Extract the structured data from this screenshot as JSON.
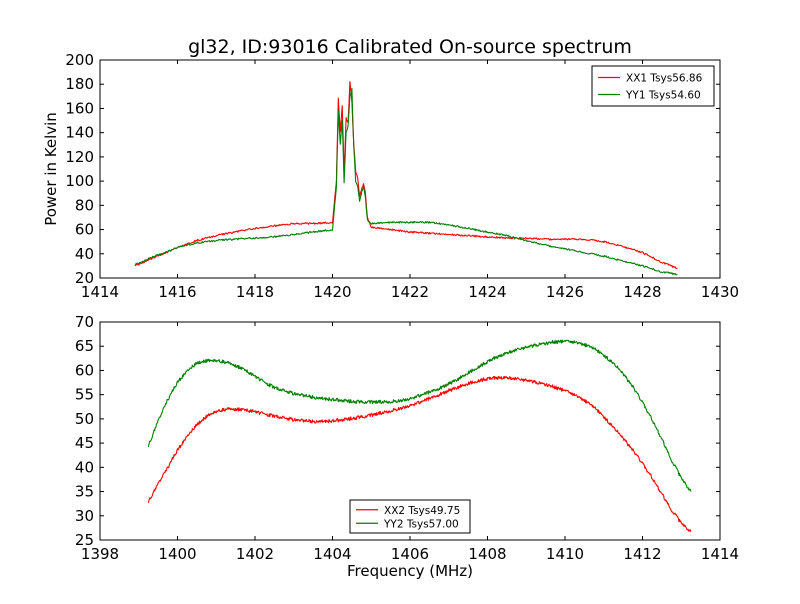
{
  "chart_data": [
    {
      "type": "line",
      "title": "gl32, ID:93016 Calibrated On-source spectrum",
      "xlabel": "",
      "ylabel": "Power in Kelvin",
      "xlim": [
        1414,
        1430
      ],
      "ylim": [
        20,
        200
      ],
      "xticks": [
        1414,
        1416,
        1418,
        1420,
        1422,
        1424,
        1426,
        1428,
        1430
      ],
      "yticks": [
        20,
        40,
        60,
        80,
        100,
        120,
        140,
        160,
        180,
        200
      ],
      "legend_position": "top-right",
      "series": [
        {
          "name": "XX1 Tsys56.86",
          "color": "#ff0000",
          "x": [
            1414.9,
            1415.4,
            1416.0,
            1416.5,
            1417.0,
            1417.5,
            1418.0,
            1418.5,
            1419.0,
            1419.5,
            1420.0,
            1420.1,
            1420.15,
            1420.2,
            1420.25,
            1420.3,
            1420.35,
            1420.4,
            1420.45,
            1420.5,
            1420.55,
            1420.6,
            1420.65,
            1420.7,
            1420.8,
            1420.85,
            1420.9,
            1421.0,
            1421.5,
            1422.0,
            1422.5,
            1423.0,
            1423.5,
            1424.0,
            1424.5,
            1425.0,
            1425.5,
            1426.0,
            1426.5,
            1427.0,
            1427.5,
            1428.0,
            1428.5,
            1428.9
          ],
          "y": [
            30,
            37,
            45,
            51,
            55,
            58,
            61,
            63,
            65,
            65,
            66,
            100,
            168,
            140,
            162,
            105,
            152,
            148,
            182,
            165,
            130,
            108,
            102,
            88,
            98,
            90,
            70,
            62,
            60,
            58,
            57,
            56,
            55,
            54,
            53,
            53,
            52,
            52,
            52,
            50,
            46,
            41,
            33,
            28
          ]
        },
        {
          "name": "YY1 Tsys54.60",
          "color": "#008000",
          "x": [
            1414.9,
            1415.4,
            1416.0,
            1416.5,
            1417.0,
            1417.5,
            1418.0,
            1418.5,
            1419.0,
            1419.5,
            1420.0,
            1420.1,
            1420.15,
            1420.2,
            1420.25,
            1420.3,
            1420.35,
            1420.4,
            1420.45,
            1420.5,
            1420.55,
            1420.6,
            1420.65,
            1420.7,
            1420.8,
            1420.85,
            1420.9,
            1421.0,
            1421.5,
            1422.0,
            1422.5,
            1423.0,
            1423.5,
            1424.0,
            1424.5,
            1425.0,
            1425.5,
            1426.0,
            1426.5,
            1427.0,
            1427.5,
            1428.0,
            1428.5,
            1428.9
          ],
          "y": [
            31,
            38,
            45,
            49,
            51,
            52,
            53,
            54,
            56,
            58,
            60,
            95,
            158,
            130,
            150,
            98,
            140,
            145,
            170,
            176,
            128,
            100,
            95,
            84,
            96,
            86,
            68,
            65,
            66,
            66,
            66,
            64,
            61,
            58,
            55,
            51,
            47,
            44,
            41,
            38,
            34,
            30,
            25,
            23
          ]
        }
      ]
    },
    {
      "type": "line",
      "title": "",
      "xlabel": "Frequency (MHz)",
      "ylabel": "",
      "xlim": [
        1398,
        1414
      ],
      "ylim": [
        25,
        70
      ],
      "xticks": [
        1398,
        1400,
        1402,
        1404,
        1406,
        1408,
        1410,
        1412,
        1414
      ],
      "yticks": [
        25,
        30,
        35,
        40,
        45,
        50,
        55,
        60,
        65,
        70
      ],
      "legend_position": "bottom-center",
      "series": [
        {
          "name": "XX2 Tsys49.75",
          "color": "#ff0000",
          "x": [
            1399.25,
            1399.5,
            1399.75,
            1400.0,
            1400.25,
            1400.5,
            1400.75,
            1401.0,
            1401.25,
            1401.5,
            1401.75,
            1402.0,
            1402.25,
            1402.5,
            1402.75,
            1403.0,
            1403.25,
            1403.5,
            1403.75,
            1404.0,
            1404.25,
            1404.5,
            1404.75,
            1405.0,
            1405.25,
            1405.5,
            1405.75,
            1406.0,
            1406.25,
            1406.5,
            1406.75,
            1407.0,
            1407.25,
            1407.5,
            1407.75,
            1408.0,
            1408.25,
            1408.5,
            1408.75,
            1409.0,
            1409.25,
            1409.5,
            1409.75,
            1410.0,
            1410.25,
            1410.5,
            1410.75,
            1411.0,
            1411.25,
            1411.5,
            1411.75,
            1412.0,
            1412.25,
            1412.5,
            1412.75,
            1413.0,
            1413.25
          ],
          "y": [
            33,
            36.5,
            40,
            43.5,
            46.5,
            48.8,
            50.5,
            51.5,
            52.0,
            52.0,
            51.8,
            51.5,
            51.0,
            50.6,
            50.2,
            49.8,
            49.6,
            49.5,
            49.5,
            49.6,
            49.8,
            50.1,
            50.4,
            50.8,
            51.2,
            51.7,
            52.2,
            52.8,
            53.4,
            54.2,
            55.0,
            55.8,
            56.6,
            57.3,
            57.9,
            58.3,
            58.5,
            58.5,
            58.3,
            58.0,
            57.6,
            57.1,
            56.5,
            55.8,
            54.9,
            53.8,
            52.4,
            50.5,
            48.3,
            46.0,
            43.5,
            40.8,
            37.8,
            34.5,
            31.2,
            28.5,
            26.7
          ]
        },
        {
          "name": "YY2 Tsys57.00",
          "color": "#008000",
          "x": [
            1399.25,
            1399.5,
            1399.75,
            1400.0,
            1400.25,
            1400.5,
            1400.75,
            1401.0,
            1401.25,
            1401.5,
            1401.75,
            1402.0,
            1402.25,
            1402.5,
            1402.75,
            1403.0,
            1403.25,
            1403.5,
            1403.75,
            1404.0,
            1404.25,
            1404.5,
            1404.75,
            1405.0,
            1405.25,
            1405.5,
            1405.75,
            1406.0,
            1406.25,
            1406.5,
            1406.75,
            1407.0,
            1407.25,
            1407.5,
            1407.75,
            1408.0,
            1408.25,
            1408.5,
            1408.75,
            1409.0,
            1409.25,
            1409.5,
            1409.75,
            1410.0,
            1410.25,
            1410.5,
            1410.75,
            1411.0,
            1411.25,
            1411.5,
            1411.75,
            1412.0,
            1412.25,
            1412.5,
            1412.75,
            1413.0,
            1413.25
          ],
          "y": [
            44.5,
            49.5,
            54,
            57.5,
            60.0,
            61.5,
            62.0,
            62.0,
            61.7,
            61.0,
            60.0,
            58.8,
            57.5,
            56.5,
            55.8,
            55.2,
            54.8,
            54.5,
            54.2,
            54.0,
            53.8,
            53.6,
            53.5,
            53.5,
            53.5,
            53.6,
            53.8,
            54.2,
            54.8,
            55.5,
            56.3,
            57.2,
            58.3,
            59.5,
            60.7,
            61.8,
            62.8,
            63.6,
            64.3,
            64.8,
            65.3,
            65.6,
            65.9,
            66.0,
            65.8,
            65.3,
            64.5,
            63.2,
            61.5,
            59.3,
            56.6,
            53.4,
            49.8,
            45.8,
            41.5,
            37.8,
            35.0
          ]
        }
      ]
    }
  ]
}
